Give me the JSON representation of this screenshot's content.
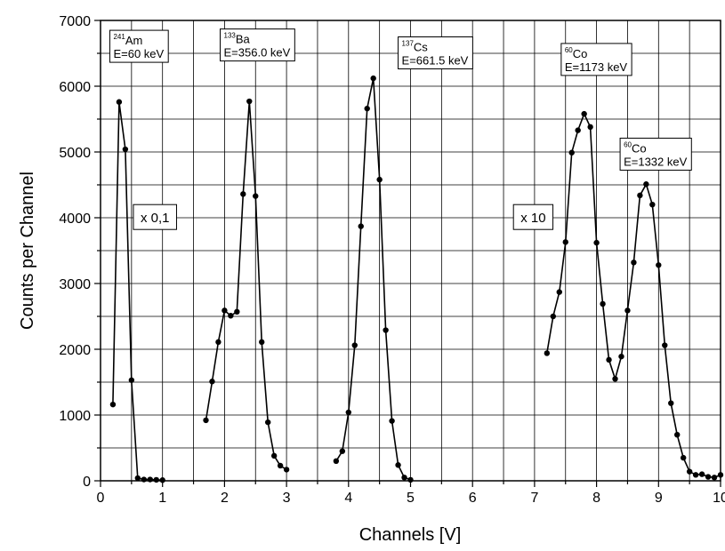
{
  "chart_data": {
    "type": "line",
    "title": "",
    "xlabel": "Channels [V]",
    "ylabel": "Counts per Channel",
    "xlim": [
      0,
      10
    ],
    "ylim": [
      0,
      7000
    ],
    "xticks": [
      "0",
      "1",
      "2",
      "3",
      "4",
      "5",
      "6",
      "7",
      "8",
      "9",
      "10"
    ],
    "yticks": [
      "0",
      "1000",
      "2000",
      "3000",
      "4000",
      "5000",
      "6000",
      "7000"
    ],
    "grid": true,
    "series": [
      {
        "x": [
          0.2,
          0.3,
          0.4,
          0.5,
          0.6,
          0.7,
          0.8,
          0.9,
          1.0
        ],
        "y": [
          1160,
          5760,
          5040,
          1530,
          40,
          20,
          20,
          15,
          10
        ]
      },
      {
        "x": [
          1.7,
          1.8,
          1.9,
          2.0,
          2.1,
          2.2,
          2.3,
          2.4,
          2.5,
          2.6,
          2.7,
          2.8,
          2.9,
          3.0
        ],
        "y": [
          920,
          1510,
          2110,
          2590,
          2510,
          2570,
          4360,
          5770,
          4330,
          2110,
          890,
          380,
          230,
          170
        ]
      },
      {
        "x": [
          3.8,
          3.9,
          4.0,
          4.1,
          4.2,
          4.3,
          4.4,
          4.5,
          4.6,
          4.7,
          4.8,
          4.9,
          5.0
        ],
        "y": [
          300,
          450,
          1040,
          2060,
          3870,
          5660,
          6120,
          4580,
          2290,
          910,
          240,
          50,
          15
        ]
      },
      {
        "x": [
          7.2,
          7.3,
          7.4,
          7.5,
          7.6,
          7.7,
          7.8,
          7.9,
          8.0,
          8.1,
          8.2,
          8.3,
          8.4,
          8.5,
          8.6,
          8.7,
          8.8,
          8.9,
          9.0,
          9.1,
          9.2,
          9.3,
          9.4,
          9.5,
          9.6,
          9.7,
          9.8,
          9.9,
          10.0
        ],
        "y": [
          1940,
          2500,
          2870,
          3630,
          4990,
          5330,
          5580,
          5380,
          3620,
          2690,
          1840,
          1550,
          1890,
          2590,
          3320,
          4340,
          4510,
          4200,
          3280,
          2060,
          1180,
          700,
          350,
          140,
          90,
          100,
          60,
          50,
          90
        ]
      }
    ],
    "annotations": [
      {
        "sup": "241",
        "name": "Am",
        "energy": "E=60 keV",
        "x": 0.15,
        "y": 6850,
        "boxed": true
      },
      {
        "sup": "133",
        "name": "Ba",
        "energy": "E=356.0 keV",
        "x": 1.93,
        "y": 6870,
        "boxed": true
      },
      {
        "sup": "137",
        "name": "Cs",
        "energy": "E=661.5 keV",
        "x": 4.8,
        "y": 6750,
        "boxed": true
      },
      {
        "sup": "60",
        "name": "Co",
        "energy": "E=1173 keV",
        "x": 7.43,
        "y": 6650,
        "boxed": true
      },
      {
        "sup": "60",
        "name": "Co",
        "energy": "E=1332 keV",
        "x": 8.38,
        "y": 5210,
        "boxed": true
      }
    ],
    "scale_labels": [
      {
        "text": "x 0,1",
        "x": 0.53,
        "y": 4200
      },
      {
        "text": "x 10",
        "x": 6.66,
        "y": 4200
      }
    ]
  }
}
